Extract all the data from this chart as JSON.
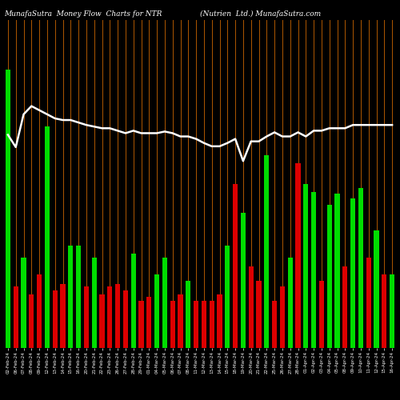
{
  "title_left": "MunafaSutra  Money Flow  Charts for NTR",
  "title_right": "(Nutrien  Ltd.) MunafaSutra.com",
  "background_color": "#000000",
  "bar_colors": [
    "green",
    "red",
    "green",
    "red",
    "red",
    "green",
    "red",
    "red",
    "green",
    "green",
    "red",
    "green",
    "red",
    "red",
    "red",
    "red",
    "green",
    "red",
    "red",
    "green",
    "green",
    "red",
    "red",
    "green",
    "red",
    "red",
    "red",
    "red",
    "green",
    "red",
    "green",
    "red",
    "red",
    "green",
    "red",
    "red",
    "green",
    "red",
    "green",
    "green",
    "red",
    "green",
    "green",
    "red",
    "green",
    "green",
    "red",
    "green",
    "red",
    "green"
  ],
  "bar_heights": [
    340,
    75,
    110,
    65,
    90,
    270,
    70,
    78,
    125,
    125,
    75,
    110,
    65,
    75,
    78,
    70,
    115,
    58,
    62,
    90,
    110,
    58,
    65,
    82,
    58,
    58,
    58,
    65,
    125,
    200,
    165,
    100,
    82,
    235,
    58,
    75,
    110,
    225,
    200,
    190,
    82,
    175,
    188,
    100,
    182,
    195,
    110,
    143,
    90,
    90
  ],
  "line_values": [
    260,
    245,
    285,
    295,
    290,
    285,
    280,
    278,
    278,
    275,
    272,
    270,
    268,
    268,
    265,
    262,
    265,
    262,
    262,
    262,
    264,
    262,
    258,
    258,
    255,
    250,
    246,
    246,
    250,
    255,
    228,
    252,
    252,
    258,
    263,
    258,
    258,
    263,
    258,
    265,
    265,
    268,
    268,
    268,
    272,
    272,
    272,
    272,
    272,
    272
  ],
  "x_labels": [
    "02-Feb-24",
    "06-Feb-24",
    "07-Feb-24",
    "08-Feb-24",
    "09-Feb-24",
    "12-Feb-24",
    "13-Feb-24",
    "14-Feb-24",
    "15-Feb-24",
    "16-Feb-24",
    "20-Feb-24",
    "21-Feb-24",
    "22-Feb-24",
    "23-Feb-24",
    "26-Feb-24",
    "27-Feb-24",
    "28-Feb-24",
    "29-Feb-24",
    "01-Mar-24",
    "04-Mar-24",
    "05-Mar-24",
    "06-Mar-24",
    "07-Mar-24",
    "08-Mar-24",
    "11-Mar-24",
    "12-Mar-24",
    "13-Mar-24",
    "14-Mar-24",
    "15-Mar-24",
    "18-Mar-24",
    "19-Mar-24",
    "20-Mar-24",
    "21-Mar-24",
    "22-Mar-24",
    "25-Mar-24",
    "26-Mar-24",
    "27-Mar-24",
    "28-Mar-24",
    "01-Apr-24",
    "02-Apr-24",
    "03-Apr-24",
    "04-Apr-24",
    "05-Apr-24",
    "08-Apr-24",
    "09-Apr-24",
    "10-Apr-24",
    "11-Apr-24",
    "12-Apr-24",
    "15-Apr-24",
    "16-Apr-24"
  ],
  "vline_color": "#cc6600",
  "line_color": "#ffffff",
  "green": "#00dd00",
  "red": "#dd0000",
  "text_color": "#ffffff",
  "ylim_max": 400,
  "title_fontsize": 6.5
}
